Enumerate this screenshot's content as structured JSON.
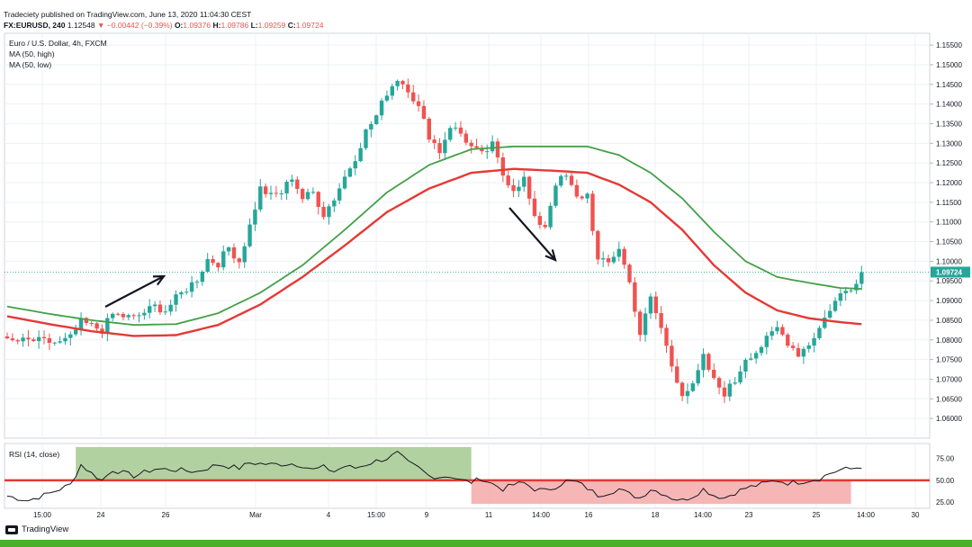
{
  "header": {
    "line1": "Tradeciety published on TradingView.com, June 13, 2020 11:04:30 CEST",
    "symbol": "FX:EURUSD, 240",
    "last": "1.12548",
    "change_arrow": "▼",
    "change": "−0.00442 (−0.39%)",
    "o_label": "O:",
    "o_value": "1.09376",
    "h_label": "H:",
    "h_value": "1.09786",
    "l_label": "L:",
    "l_value": "1.09259",
    "c_label": "C:",
    "c_value": "1.09724"
  },
  "legend": {
    "title": "Euro / U.S. Dollar, 4h, FXCM",
    "ma_high": "MA (50, high)",
    "ma_low": "MA (50, low)",
    "rsi": "RSI (14, close)"
  },
  "footer": {
    "brand": "TradingView"
  },
  "colors": {
    "up": "#26a69a",
    "down": "#ef5350",
    "ma_high": "#43a047",
    "ma_low": "#e53935",
    "rsi_line": "#131722",
    "rsi_mid": "#e53935",
    "zone_green": "#a5c98f",
    "zone_red": "#f4a9a8",
    "price_label": "#26a69a",
    "grid": "#eef1f6"
  },
  "chart_data": [
    {
      "type": "candlestick",
      "title": "Euro / U.S. Dollar, 4h, FXCM",
      "ylim": [
        1.055,
        1.158
      ],
      "y_ticks": [
        "1.06000",
        "1.06500",
        "1.07000",
        "1.07500",
        "1.08000",
        "1.08500",
        "1.09000",
        "1.09500",
        "1.10000",
        "1.10500",
        "1.11000",
        "1.11500",
        "1.12000",
        "1.12500",
        "1.13000",
        "1.13500",
        "1.14000",
        "1.14500",
        "1.15000",
        "1.15500"
      ],
      "x_ticks": [
        "15:00",
        "24",
        "26",
        "Mar",
        "4",
        "15:00",
        "9",
        "11",
        "14:00",
        "16",
        "18",
        "14:00",
        "23",
        "25",
        "14:00",
        "30"
      ],
      "last_price_label": "1.09724",
      "last_price": 1.09724,
      "close_anchors": [
        [
          0,
          1.0795
        ],
        [
          5,
          1.0798
        ],
        [
          10,
          1.0792
        ],
        [
          12,
          1.0805
        ],
        [
          14,
          1.0845
        ],
        [
          18,
          1.0825
        ],
        [
          20,
          1.0865
        ],
        [
          24,
          1.0855
        ],
        [
          28,
          1.0885
        ],
        [
          30,
          1.0875
        ],
        [
          32,
          1.0905
        ],
        [
          36,
          1.0955
        ],
        [
          38,
          1.1005
        ],
        [
          40,
          1.0995
        ],
        [
          42,
          1.1035
        ],
        [
          44,
          1.1
        ],
        [
          46,
          1.109
        ],
        [
          48,
          1.1185
        ],
        [
          50,
          1.1165
        ],
        [
          52,
          1.1175
        ],
        [
          54,
          1.1215
        ],
        [
          56,
          1.116
        ],
        [
          58,
          1.1175
        ],
        [
          60,
          1.112
        ],
        [
          62,
          1.116
        ],
        [
          64,
          1.1215
        ],
        [
          66,
          1.1265
        ],
        [
          68,
          1.133
        ],
        [
          70,
          1.137
        ],
        [
          72,
          1.143
        ],
        [
          74,
          1.1465
        ],
        [
          76,
          1.144
        ],
        [
          78,
          1.139
        ],
        [
          80,
          1.132
        ],
        [
          82,
          1.128
        ],
        [
          84,
          1.1345
        ],
        [
          86,
          1.1325
        ],
        [
          88,
          1.129
        ],
        [
          90,
          1.127
        ],
        [
          92,
          1.1295
        ],
        [
          94,
          1.122
        ],
        [
          96,
          1.1185
        ],
        [
          98,
          1.121
        ],
        [
          100,
          1.1105
        ],
        [
          102,
          1.109
        ],
        [
          104,
          1.12
        ],
        [
          106,
          1.1215
        ],
        [
          108,
          1.116
        ],
        [
          110,
          1.117
        ],
        [
          112,
          1.1
        ],
        [
          114,
          1.0995
        ],
        [
          116,
          1.1035
        ],
        [
          118,
          1.0945
        ],
        [
          120,
          1.0815
        ],
        [
          122,
          1.0905
        ],
        [
          124,
          1.083
        ],
        [
          126,
          1.0735
        ],
        [
          128,
          1.0665
        ],
        [
          130,
          1.068
        ],
        [
          132,
          1.0755
        ],
        [
          134,
          1.0695
        ],
        [
          136,
          1.0665
        ],
        [
          138,
          1.0695
        ],
        [
          140,
          1.0755
        ],
        [
          142,
          1.077
        ],
        [
          144,
          1.08
        ],
        [
          146,
          1.083
        ],
        [
          148,
          1.0795
        ],
        [
          150,
          1.0765
        ],
        [
          152,
          1.079
        ],
        [
          154,
          1.083
        ],
        [
          156,
          1.088
        ],
        [
          158,
          1.0915
        ],
        [
          160,
          1.0935
        ],
        [
          162,
          1.0972
        ]
      ],
      "ma_high_anchors": [
        [
          0,
          1.0885
        ],
        [
          8,
          1.0866
        ],
        [
          16,
          1.085
        ],
        [
          24,
          1.0838
        ],
        [
          32,
          1.084
        ],
        [
          40,
          1.0868
        ],
        [
          48,
          1.092
        ],
        [
          56,
          1.099
        ],
        [
          64,
          1.108
        ],
        [
          72,
          1.1175
        ],
        [
          80,
          1.1245
        ],
        [
          88,
          1.1285
        ],
        [
          96,
          1.1292
        ],
        [
          104,
          1.1292
        ],
        [
          110,
          1.1292
        ],
        [
          116,
          1.127
        ],
        [
          122,
          1.1225
        ],
        [
          128,
          1.116
        ],
        [
          134,
          1.1075
        ],
        [
          140,
          1.1
        ],
        [
          146,
          1.096
        ],
        [
          152,
          1.0945
        ],
        [
          158,
          1.0932
        ],
        [
          162,
          1.093
        ]
      ],
      "ma_low_anchors": [
        [
          0,
          1.086
        ],
        [
          8,
          1.084
        ],
        [
          16,
          1.0822
        ],
        [
          24,
          1.081
        ],
        [
          32,
          1.0812
        ],
        [
          40,
          1.0838
        ],
        [
          48,
          1.089
        ],
        [
          56,
          1.096
        ],
        [
          64,
          1.104
        ],
        [
          72,
          1.1125
        ],
        [
          80,
          1.1185
        ],
        [
          88,
          1.1225
        ],
        [
          96,
          1.1235
        ],
        [
          104,
          1.123
        ],
        [
          110,
          1.1225
        ],
        [
          116,
          1.1195
        ],
        [
          122,
          1.115
        ],
        [
          128,
          1.108
        ],
        [
          134,
          1.099
        ],
        [
          140,
          1.092
        ],
        [
          146,
          1.0875
        ],
        [
          152,
          1.0855
        ],
        [
          158,
          1.0845
        ],
        [
          162,
          1.084
        ]
      ]
    },
    {
      "type": "line",
      "title": "RSI (14, close)",
      "ylim": [
        18,
        92
      ],
      "y_ticks": [
        "75.00",
        "50.00",
        "25.00"
      ],
      "mid_line": 50,
      "zones": [
        {
          "name": "green",
          "from_index": 13,
          "to_index": 88,
          "y_range": [
            50,
            88
          ]
        },
        {
          "name": "red",
          "from_index": 88,
          "to_index": 160,
          "y_range": [
            23,
            50
          ]
        }
      ],
      "rsi_anchors": [
        [
          0,
          32
        ],
        [
          4,
          27
        ],
        [
          8,
          35
        ],
        [
          12,
          45
        ],
        [
          14,
          68
        ],
        [
          16,
          58
        ],
        [
          18,
          50
        ],
        [
          20,
          62
        ],
        [
          24,
          55
        ],
        [
          28,
          63
        ],
        [
          32,
          62
        ],
        [
          36,
          60
        ],
        [
          40,
          68
        ],
        [
          44,
          64
        ],
        [
          46,
          70
        ],
        [
          50,
          68
        ],
        [
          54,
          69
        ],
        [
          56,
          67
        ],
        [
          58,
          62
        ],
        [
          60,
          65
        ],
        [
          62,
          60
        ],
        [
          64,
          66
        ],
        [
          66,
          64
        ],
        [
          68,
          68
        ],
        [
          70,
          72
        ],
        [
          72,
          75
        ],
        [
          74,
          81
        ],
        [
          76,
          70
        ],
        [
          78,
          64
        ],
        [
          80,
          55
        ],
        [
          82,
          54
        ],
        [
          84,
          55
        ],
        [
          86,
          50
        ],
        [
          88,
          48
        ],
        [
          90,
          52
        ],
        [
          92,
          46
        ],
        [
          94,
          40
        ],
        [
          96,
          45
        ],
        [
          98,
          47
        ],
        [
          100,
          40
        ],
        [
          102,
          38
        ],
        [
          104,
          43
        ],
        [
          106,
          49
        ],
        [
          108,
          48
        ],
        [
          110,
          41
        ],
        [
          112,
          33
        ],
        [
          114,
          36
        ],
        [
          116,
          40
        ],
        [
          118,
          34
        ],
        [
          120,
          30
        ],
        [
          122,
          40
        ],
        [
          124,
          36
        ],
        [
          126,
          30
        ],
        [
          128,
          27
        ],
        [
          130,
          32
        ],
        [
          132,
          40
        ],
        [
          134,
          33
        ],
        [
          136,
          30
        ],
        [
          138,
          36
        ],
        [
          140,
          41
        ],
        [
          142,
          44
        ],
        [
          144,
          47
        ],
        [
          146,
          50
        ],
        [
          148,
          47
        ],
        [
          150,
          48
        ],
        [
          152,
          50
        ],
        [
          154,
          52
        ],
        [
          156,
          58
        ],
        [
          158,
          62
        ],
        [
          160,
          63
        ],
        [
          162,
          66
        ]
      ]
    }
  ],
  "annotations": [
    {
      "name": "arrow-up"
    },
    {
      "name": "arrow-down"
    }
  ]
}
